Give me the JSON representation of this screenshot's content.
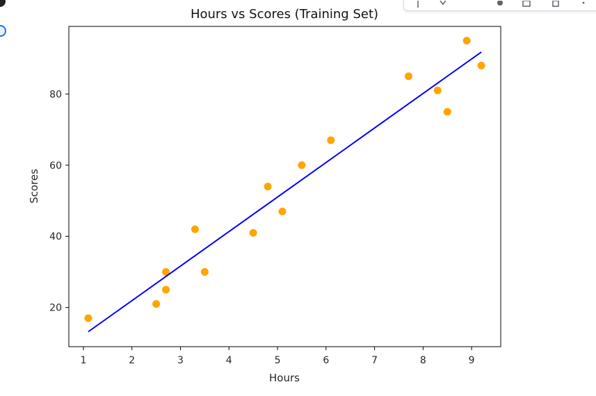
{
  "chart_data": {
    "type": "scatter",
    "title": "Hours vs Scores (Training Set)",
    "xlabel": "Hours",
    "ylabel": "Scores",
    "xlim": [
      0.7,
      9.6
    ],
    "ylim": [
      9,
      99
    ],
    "xticks": [
      1,
      2,
      3,
      4,
      5,
      6,
      7,
      8,
      9
    ],
    "yticks": [
      20,
      40,
      60,
      80
    ],
    "grid": false,
    "series": [
      {
        "kind": "scatter",
        "color": "#FFA500",
        "points": [
          {
            "x": 1.1,
            "y": 17
          },
          {
            "x": 2.5,
            "y": 21
          },
          {
            "x": 2.7,
            "y": 25
          },
          {
            "x": 2.7,
            "y": 30
          },
          {
            "x": 3.3,
            "y": 42
          },
          {
            "x": 3.5,
            "y": 30
          },
          {
            "x": 4.5,
            "y": 41
          },
          {
            "x": 4.8,
            "y": 54
          },
          {
            "x": 5.1,
            "y": 47
          },
          {
            "x": 5.5,
            "y": 60
          },
          {
            "x": 6.1,
            "y": 67
          },
          {
            "x": 7.7,
            "y": 85
          },
          {
            "x": 8.3,
            "y": 81
          },
          {
            "x": 8.5,
            "y": 75
          },
          {
            "x": 8.9,
            "y": 95
          },
          {
            "x": 9.2,
            "y": 88
          }
        ]
      },
      {
        "kind": "line",
        "color": "#0000FF",
        "points": [
          {
            "x": 1.1,
            "y": 13.2
          },
          {
            "x": 9.2,
            "y": 91.8
          }
        ]
      }
    ]
  },
  "colors": {
    "scatter": "#FFA500",
    "regression_line": "#0000FF",
    "toolbar_icon": "#5f6368",
    "left_status_icon": "#1a73e8"
  },
  "toolbar": {
    "icons": [
      "arrow-up-icon",
      "arrow-down-icon",
      "settings-icon",
      "comment-icon",
      "copy-icon",
      "more-icon"
    ]
  }
}
